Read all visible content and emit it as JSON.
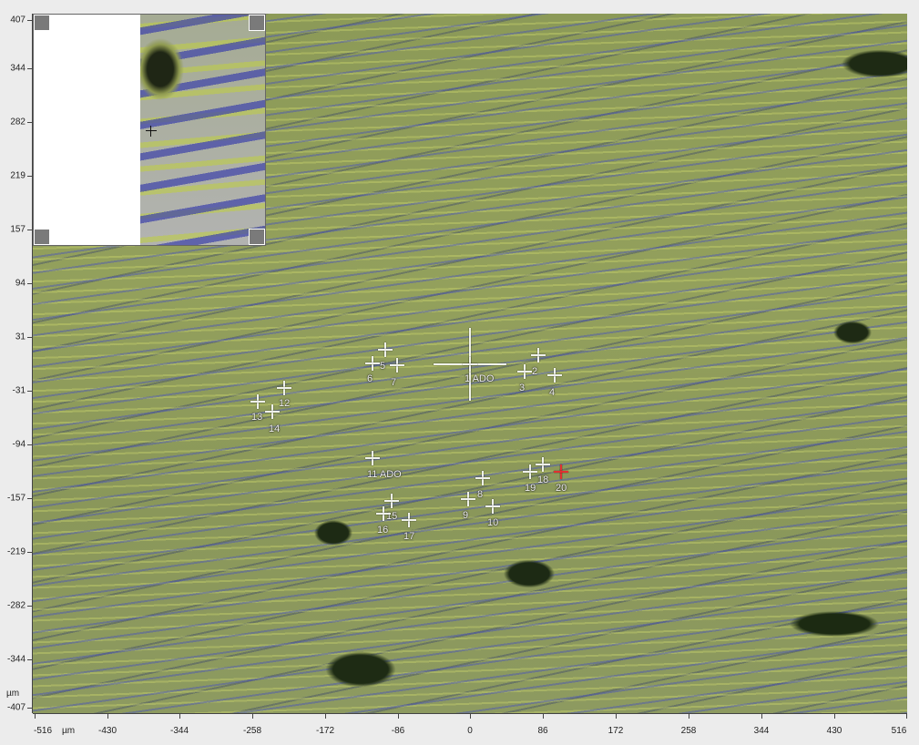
{
  "y_axis": {
    "labels": [
      "407",
      "344",
      "282",
      "219",
      "157",
      "94",
      "31",
      "-31",
      "-94",
      "-157",
      "-219",
      "-282",
      "-344",
      "-407"
    ],
    "unit": "µm"
  },
  "x_axis": {
    "labels": [
      "-516",
      "-430",
      "-344",
      "-258",
      "-172",
      "-86",
      "0",
      "86",
      "172",
      "258",
      "344",
      "430",
      "516"
    ],
    "unit": "µm"
  },
  "markers": [
    {
      "label": "1 ADO",
      "big": true
    },
    {
      "label": "2"
    },
    {
      "label": "3"
    },
    {
      "label": "4"
    },
    {
      "label": "5"
    },
    {
      "label": "6"
    },
    {
      "label": "7"
    },
    {
      "label": "8"
    },
    {
      "label": "9"
    },
    {
      "label": "10"
    },
    {
      "label": "11 ADO"
    },
    {
      "label": "12"
    },
    {
      "label": "13"
    },
    {
      "label": "14"
    },
    {
      "label": "15"
    },
    {
      "label": "16"
    },
    {
      "label": "17"
    },
    {
      "label": "18"
    },
    {
      "label": "19"
    },
    {
      "label": "20",
      "color": "#e03030"
    }
  ],
  "icons": {
    "inset_corner": "corner-handle-icon",
    "crosshair": "crosshair-icon"
  }
}
